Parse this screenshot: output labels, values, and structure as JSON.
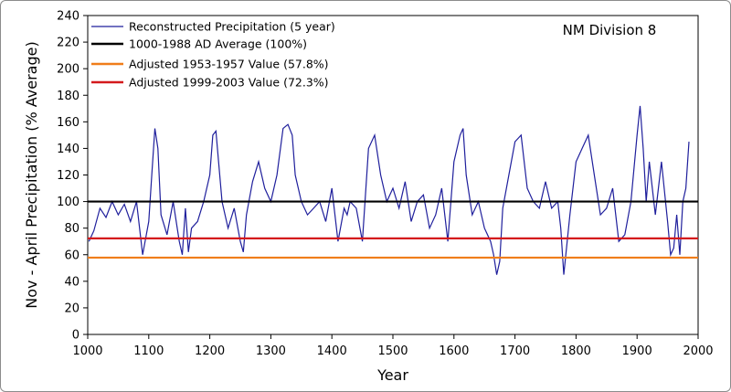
{
  "chart_data": {
    "type": "line",
    "annotation": "NM Division 8",
    "xlabel": "Year",
    "ylabel": "Nov - April Precipitation (% Average)",
    "xlim": [
      1000,
      2000
    ],
    "ylim": [
      0,
      240
    ],
    "x_ticks": [
      1000,
      1100,
      1200,
      1300,
      1400,
      1500,
      1600,
      1700,
      1800,
      1900,
      2000
    ],
    "y_ticks": [
      0,
      20,
      40,
      60,
      80,
      100,
      120,
      140,
      160,
      180,
      200,
      220,
      240
    ],
    "grid": false,
    "legend_position": "top-left",
    "series": [
      {
        "name": "Reconstructed Precipitation (5 year)",
        "type": "line",
        "color": "#1f1f9c",
        "x": [
          1002,
          1010,
          1020,
          1030,
          1040,
          1050,
          1060,
          1070,
          1080,
          1090,
          1100,
          1105,
          1110,
          1115,
          1120,
          1130,
          1140,
          1150,
          1155,
          1160,
          1165,
          1170,
          1180,
          1190,
          1200,
          1205,
          1210,
          1220,
          1230,
          1240,
          1250,
          1255,
          1260,
          1270,
          1280,
          1290,
          1300,
          1310,
          1320,
          1328,
          1335,
          1340,
          1350,
          1360,
          1370,
          1380,
          1390,
          1400,
          1410,
          1420,
          1425,
          1430,
          1440,
          1450,
          1460,
          1470,
          1480,
          1490,
          1500,
          1510,
          1520,
          1530,
          1540,
          1550,
          1560,
          1570,
          1580,
          1590,
          1600,
          1610,
          1615,
          1620,
          1630,
          1640,
          1650,
          1660,
          1665,
          1670,
          1675,
          1680,
          1690,
          1700,
          1710,
          1720,
          1730,
          1740,
          1750,
          1760,
          1770,
          1775,
          1780,
          1790,
          1800,
          1810,
          1820,
          1830,
          1840,
          1850,
          1860,
          1870,
          1880,
          1890,
          1900,
          1905,
          1910,
          1915,
          1920,
          1930,
          1940,
          1950,
          1955,
          1960,
          1965,
          1970,
          1975,
          1980,
          1985
        ],
        "y": [
          70,
          78,
          95,
          88,
          100,
          90,
          98,
          85,
          100,
          60,
          85,
          120,
          155,
          140,
          90,
          75,
          100,
          70,
          60,
          95,
          62,
          80,
          85,
          100,
          120,
          150,
          153,
          100,
          80,
          95,
          70,
          62,
          90,
          115,
          130,
          110,
          100,
          120,
          155,
          158,
          150,
          120,
          100,
          90,
          95,
          100,
          85,
          110,
          70,
          95,
          90,
          100,
          95,
          70,
          140,
          150,
          120,
          100,
          110,
          95,
          115,
          85,
          100,
          105,
          80,
          90,
          110,
          70,
          130,
          150,
          155,
          120,
          90,
          100,
          80,
          70,
          60,
          45,
          55,
          95,
          120,
          145,
          150,
          110,
          100,
          95,
          115,
          95,
          100,
          80,
          45,
          90,
          130,
          140,
          150,
          120,
          90,
          95,
          110,
          70,
          75,
          100,
          150,
          172,
          140,
          100,
          130,
          90,
          130,
          85,
          60,
          65,
          90,
          60,
          100,
          110,
          145
        ]
      },
      {
        "name": "1000-1988 AD Average (100%)",
        "type": "hline",
        "value": 100,
        "color": "#000000"
      },
      {
        "name": "Adjusted 1953-1957 Value (57.8%)",
        "type": "hline",
        "value": 57.8,
        "color": "#f07d1a"
      },
      {
        "name": "Adjusted 1999-2003 Value (72.3%)",
        "type": "hline",
        "value": 72.3,
        "color": "#d4191c"
      }
    ]
  }
}
